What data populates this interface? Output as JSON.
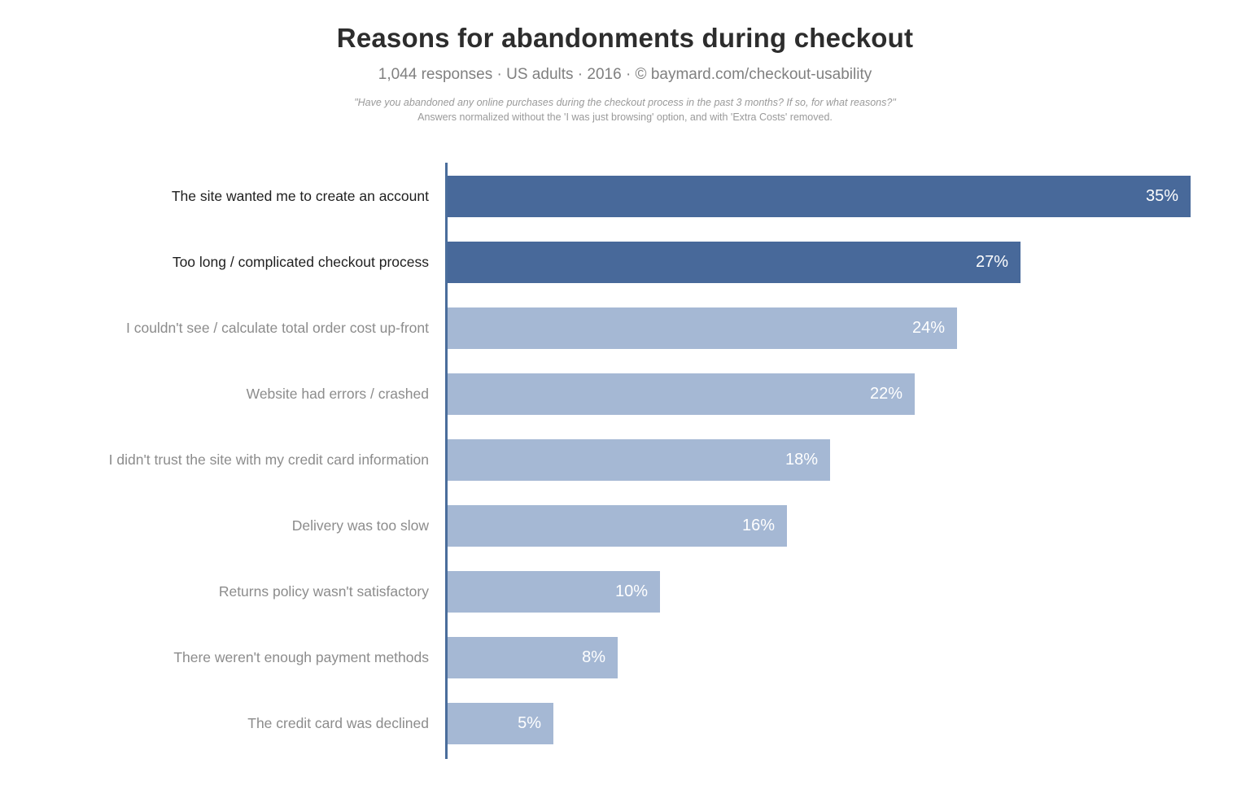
{
  "page": {
    "title": "Reasons for abandonments during checkout",
    "subtitle": "1,044 responses  ·  US adults  ·  2016  ·  ©  baymard.com/checkout-usability",
    "footnote_quote": "\"Have you abandoned any online purchases during the checkout process in the past 3 months? If so, for what reasons?\"",
    "footnote_note": "Answers normalized without the 'I was just browsing' option, and with 'Extra Costs' removed."
  },
  "chart_data": {
    "type": "bar",
    "orientation": "horizontal",
    "title": "Reasons for abandonments during checkout",
    "xlabel": "",
    "ylabel": "",
    "unit": "%",
    "xlim": [
      0,
      35
    ],
    "grid": false,
    "legend": false,
    "categories": [
      "The site wanted me to create an account",
      "Too long / complicated checkout process",
      "I couldn't see / calculate total order cost up-front",
      "Website had errors / crashed",
      "I didn't trust the site with my credit card information",
      "Delivery was too slow",
      "Returns policy wasn't satisfactory",
      "There weren't enough payment methods",
      "The credit card was declined"
    ],
    "values": [
      35,
      27,
      24,
      22,
      18,
      16,
      10,
      8,
      5
    ],
    "value_labels": [
      "35%",
      "27%",
      "24%",
      "22%",
      "18%",
      "16%",
      "10%",
      "8%",
      "5%"
    ],
    "emphasized": [
      true,
      true,
      false,
      false,
      false,
      false,
      false,
      false,
      false
    ],
    "colors": {
      "bar_emphasis": "#48699a",
      "bar_normal": "#a5b8d4",
      "axis": "#4a6d9b",
      "label_emphasis": "#1f1f1f",
      "label_normal": "#8c8c8c",
      "value_text": "#ffffff"
    }
  }
}
